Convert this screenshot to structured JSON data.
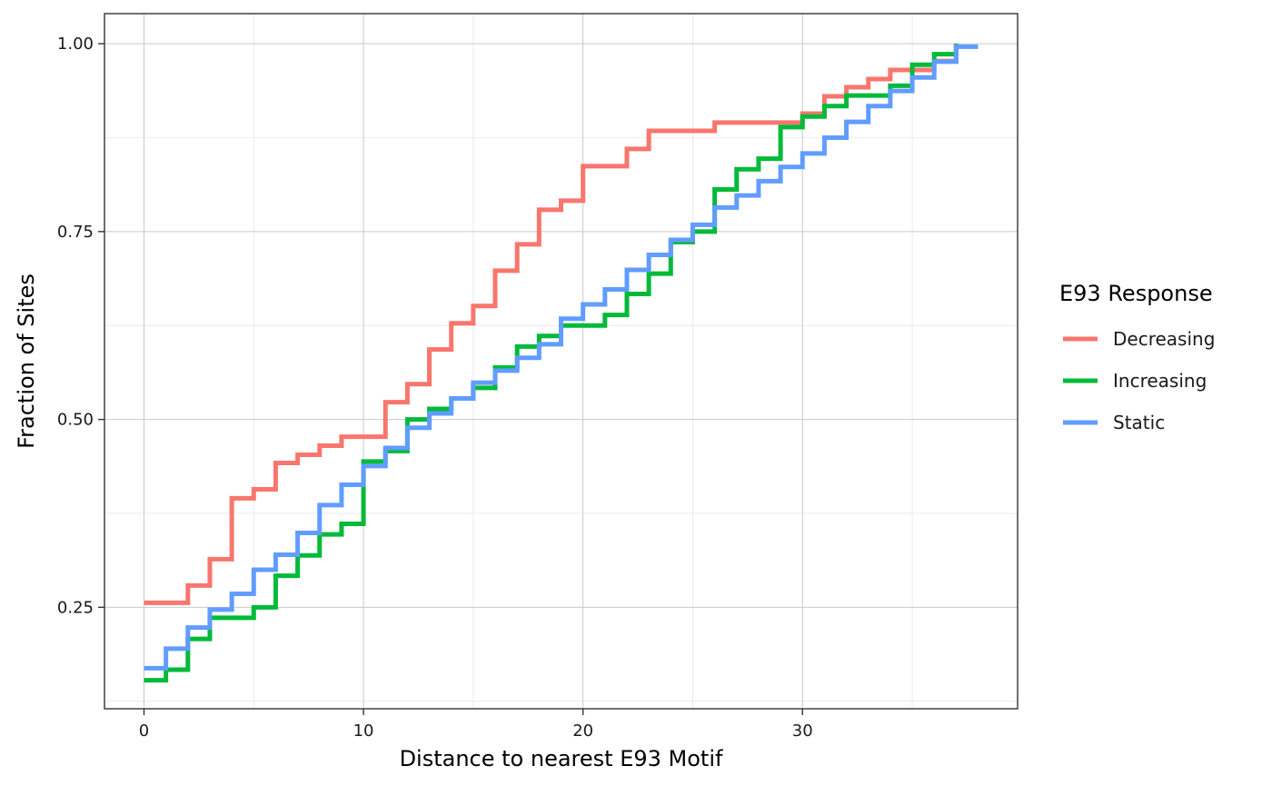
{
  "chart_data": {
    "type": "line",
    "step": true,
    "title": "",
    "xlabel": "Distance to nearest E93 Motif",
    "ylabel": "Fraction of Sites",
    "xlim": [
      -1.8,
      39.8
    ],
    "ylim": [
      0.115,
      1.04
    ],
    "x_ticks": [
      0,
      10,
      20,
      30
    ],
    "x_tick_labels": [
      "0",
      "10",
      "20",
      "30"
    ],
    "y_ticks": [
      0.25,
      0.5,
      0.75,
      1.0
    ],
    "y_tick_labels": [
      "0.25",
      "0.50",
      "0.75",
      "1.00"
    ],
    "x_minor_ticks": [
      5,
      15,
      25,
      35
    ],
    "y_minor_ticks": [
      0.125,
      0.375,
      0.625,
      0.875
    ],
    "grid": true,
    "legend": {
      "title": "E93 Response",
      "position": "right"
    },
    "series": [
      {
        "name": "Decreasing",
        "color": "#F8766D",
        "x": [
          0,
          1,
          2,
          3,
          4,
          5,
          6,
          7,
          8,
          9,
          10,
          11,
          12,
          13,
          14,
          15,
          16,
          17,
          18,
          19,
          20,
          21,
          22,
          23,
          24,
          25,
          26,
          27,
          28,
          29,
          30,
          31,
          32,
          33,
          34,
          35,
          36,
          37
        ],
        "y": [
          0.256,
          0.256,
          0.279,
          0.314,
          0.395,
          0.407,
          0.442,
          0.453,
          0.465,
          0.477,
          0.477,
          0.523,
          0.547,
          0.593,
          0.628,
          0.651,
          0.698,
          0.733,
          0.779,
          0.791,
          0.837,
          0.837,
          0.86,
          0.884,
          0.884,
          0.884,
          0.895,
          0.895,
          0.895,
          0.895,
          0.907,
          0.93,
          0.942,
          0.953,
          0.965,
          0.965,
          0.977,
          1.0
        ]
      },
      {
        "name": "Increasing",
        "color": "#00BA38",
        "x": [
          0,
          1,
          2,
          3,
          4,
          5,
          6,
          7,
          8,
          9,
          10,
          11,
          12,
          13,
          14,
          15,
          16,
          17,
          18,
          19,
          20,
          21,
          22,
          23,
          24,
          25,
          26,
          27,
          28,
          29,
          30,
          31,
          32,
          33,
          34,
          35,
          36,
          37
        ],
        "y": [
          0.153,
          0.167,
          0.208,
          0.236,
          0.236,
          0.25,
          0.292,
          0.319,
          0.347,
          0.361,
          0.444,
          0.458,
          0.5,
          0.514,
          0.528,
          0.542,
          0.569,
          0.597,
          0.611,
          0.625,
          0.625,
          0.639,
          0.667,
          0.694,
          0.736,
          0.75,
          0.806,
          0.833,
          0.847,
          0.889,
          0.903,
          0.917,
          0.931,
          0.931,
          0.944,
          0.972,
          0.986,
          1.0
        ]
      },
      {
        "name": "Static",
        "color": "#619CFF",
        "x": [
          0,
          1,
          2,
          3,
          4,
          5,
          6,
          7,
          8,
          9,
          10,
          11,
          12,
          13,
          14,
          15,
          16,
          17,
          18,
          19,
          20,
          21,
          22,
          23,
          24,
          25,
          26,
          27,
          28,
          29,
          30,
          31,
          32,
          33,
          34,
          35,
          36,
          37,
          38
        ],
        "y": [
          0.169,
          0.195,
          0.223,
          0.247,
          0.268,
          0.3,
          0.32,
          0.349,
          0.386,
          0.413,
          0.438,
          0.462,
          0.489,
          0.508,
          0.528,
          0.549,
          0.565,
          0.582,
          0.6,
          0.634,
          0.653,
          0.673,
          0.699,
          0.719,
          0.739,
          0.759,
          0.782,
          0.798,
          0.817,
          0.836,
          0.854,
          0.875,
          0.896,
          0.917,
          0.937,
          0.955,
          0.976,
          0.996,
          0.996
        ]
      }
    ]
  }
}
